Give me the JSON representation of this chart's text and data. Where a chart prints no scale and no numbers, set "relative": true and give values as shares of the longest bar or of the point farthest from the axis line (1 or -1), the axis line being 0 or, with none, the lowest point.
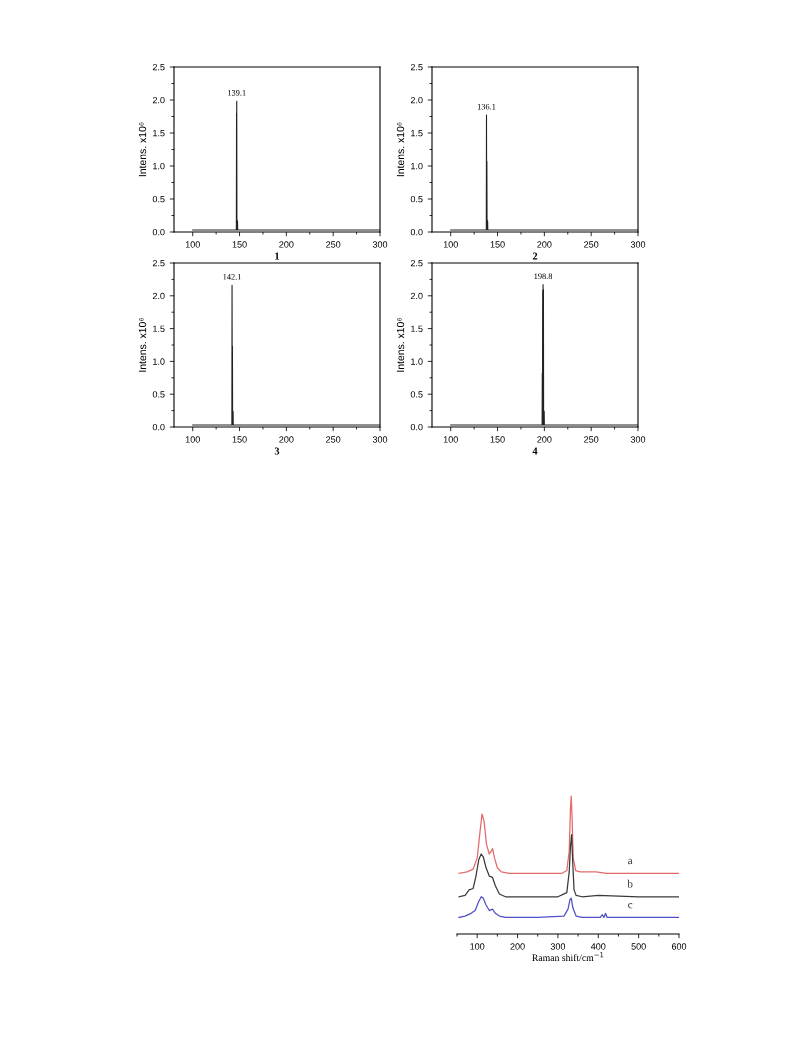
{
  "chart_data": [
    {
      "type": "line",
      "xlabel": "1",
      "ylabel": "Intens. x10⁶",
      "xlim": [
        80,
        300
      ],
      "ylim": [
        0,
        2.5
      ],
      "xticks": [
        100,
        150,
        200,
        250,
        300
      ],
      "yticks": [
        {
          "value": 0,
          "label": "0.0"
        },
        {
          "value": 0.5,
          "label": "0.5"
        },
        {
          "value": 1,
          "label": "1.0"
        },
        {
          "value": 1.5,
          "label": "1.5"
        },
        {
          "value": 2,
          "label": "2.0"
        },
        {
          "value": 2.5,
          "label": "2.5"
        }
      ],
      "grid": false,
      "legend": false,
      "annotations": [
        "139.1"
      ],
      "series": [
        {
          "color": "#222222",
          "x": [
            100,
            146.6,
            146.8,
            146.9,
            147.0,
            147.2,
            147.6,
            147.8,
            148.0,
            300
          ],
          "values": [
            0.03,
            0.03,
            1.8,
            0.03,
            1.98,
            0.03,
            0.03,
            0.17,
            0.03,
            0.03
          ]
        }
      ]
    },
    {
      "type": "line",
      "xlabel": "2",
      "ylabel": "Intens. x10⁶",
      "xlim": [
        80,
        300
      ],
      "ylim": [
        0,
        2.5
      ],
      "xticks": [
        100,
        150,
        200,
        250,
        300
      ],
      "yticks": [
        {
          "value": 0,
          "label": "0.0"
        },
        {
          "value": 0.5,
          "label": "0.5"
        },
        {
          "value": 1,
          "label": "1.0"
        },
        {
          "value": 1.5,
          "label": "1.5"
        },
        {
          "value": 2,
          "label": "2.0"
        },
        {
          "value": 2.5,
          "label": "2.5"
        }
      ],
      "grid": false,
      "legend": false,
      "annotations": [
        "136.1"
      ],
      "series": [
        {
          "color": "#222222",
          "x": [
            100,
            138.0,
            138.2,
            138.4,
            138.6,
            138.8,
            139.2,
            139.4,
            139.6,
            300
          ],
          "values": [
            0.03,
            0.03,
            1.77,
            0.03,
            1.07,
            0.03,
            0.03,
            0.17,
            0.03,
            0.03
          ]
        }
      ]
    },
    {
      "type": "line",
      "xlabel": "3",
      "ylabel": "Intens. x10⁶",
      "xlim": [
        80,
        300
      ],
      "ylim": [
        0,
        2.5
      ],
      "xticks": [
        100,
        150,
        200,
        250,
        300
      ],
      "yticks": [
        {
          "value": 0,
          "label": "0.0"
        },
        {
          "value": 0.5,
          "label": "0.5"
        },
        {
          "value": 1,
          "label": "1.0"
        },
        {
          "value": 1.5,
          "label": "1.5"
        },
        {
          "value": 2,
          "label": "2.0"
        },
        {
          "value": 2.5,
          "label": "2.5"
        }
      ],
      "grid": false,
      "legend": false,
      "annotations": [
        "142.1"
      ],
      "series": [
        {
          "color": "#222222",
          "x": [
            100,
            141.8,
            142.0,
            142.2,
            142.4,
            142.6,
            142.9,
            143.1,
            143.3,
            300
          ],
          "values": [
            0.03,
            0.03,
            2.16,
            0.03,
            1.23,
            0.03,
            0.03,
            0.24,
            0.03,
            0.03
          ]
        }
      ]
    },
    {
      "type": "line",
      "xlabel": "4",
      "ylabel": "Intens. x10⁶",
      "xlim": [
        80,
        300
      ],
      "ylim": [
        0,
        2.5
      ],
      "xticks": [
        100,
        150,
        200,
        250,
        300
      ],
      "yticks": [
        {
          "value": 0,
          "label": "0.0"
        },
        {
          "value": 0.5,
          "label": "0.5"
        },
        {
          "value": 1,
          "label": "1.0"
        },
        {
          "value": 1.5,
          "label": "1.5"
        },
        {
          "value": 2,
          "label": "2.0"
        },
        {
          "value": 2.5,
          "label": "2.5"
        }
      ],
      "grid": false,
      "legend": false,
      "annotations": [
        "198.8"
      ],
      "series": [
        {
          "color": "#222222",
          "x": [
            100,
            197.6,
            197.8,
            198.0,
            198.2,
            198.4,
            198.6,
            198.8,
            199.0,
            199.2,
            199.6,
            199.8,
            200.0,
            300
          ],
          "values": [
            0.03,
            0.03,
            0.82,
            0.03,
            2.08,
            0.03,
            2.17,
            0.03,
            2.1,
            0.03,
            0.03,
            0.24,
            0.03,
            0.03
          ]
        }
      ]
    },
    {
      "type": "line",
      "xlabel": "Raman shift/cm$^{−1}$",
      "xlim": [
        50,
        600
      ],
      "xticks": [
        100,
        200,
        300,
        400,
        500,
        600
      ],
      "relative": true,
      "tick_labels": "x",
      "grid": false,
      "legend": false,
      "series": [
        {
          "name": "a",
          "color": "#e46a6a",
          "x": [
            55,
            75,
            90,
            100,
            107,
            112,
            117,
            123,
            130,
            135,
            138,
            143,
            150,
            160,
            180,
            250,
            310,
            322,
            328,
            331,
            333,
            335,
            338,
            344,
            355,
            380,
            395,
            420,
            500,
            600
          ],
          "values": [
            0.44,
            0.45,
            0.47,
            0.55,
            0.74,
            0.87,
            0.82,
            0.65,
            0.58,
            0.6,
            0.62,
            0.55,
            0.48,
            0.45,
            0.44,
            0.44,
            0.44,
            0.46,
            0.6,
            0.9,
            1.0,
            0.85,
            0.55,
            0.46,
            0.45,
            0.45,
            0.45,
            0.44,
            0.44,
            0.44
          ]
        },
        {
          "name": "b",
          "color": "#3a3a3a",
          "x": [
            55,
            70,
            80,
            90,
            97,
            104,
            110,
            115,
            122,
            130,
            138,
            145,
            155,
            170,
            200,
            300,
            322,
            328,
            331,
            334,
            337,
            340,
            345,
            360,
            400,
            500,
            600
          ],
          "values": [
            0.27,
            0.28,
            0.32,
            0.33,
            0.42,
            0.54,
            0.58,
            0.56,
            0.48,
            0.42,
            0.41,
            0.35,
            0.29,
            0.27,
            0.27,
            0.27,
            0.3,
            0.45,
            0.63,
            0.72,
            0.5,
            0.32,
            0.28,
            0.27,
            0.28,
            0.27,
            0.27
          ]
        },
        {
          "name": "c",
          "color": "#5050c8",
          "x": [
            55,
            70,
            85,
            95,
            103,
            110,
            115,
            122,
            130,
            138,
            145,
            155,
            170,
            250,
            315,
            325,
            330,
            333,
            337,
            345,
            360,
            405,
            410,
            414,
            418,
            422,
            430,
            500,
            600
          ],
          "values": [
            0.12,
            0.13,
            0.15,
            0.17,
            0.23,
            0.27,
            0.26,
            0.21,
            0.17,
            0.18,
            0.15,
            0.13,
            0.12,
            0.12,
            0.13,
            0.18,
            0.25,
            0.26,
            0.19,
            0.13,
            0.12,
            0.12,
            0.14,
            0.12,
            0.15,
            0.12,
            0.12,
            0.12,
            0.12
          ]
        }
      ]
    }
  ]
}
